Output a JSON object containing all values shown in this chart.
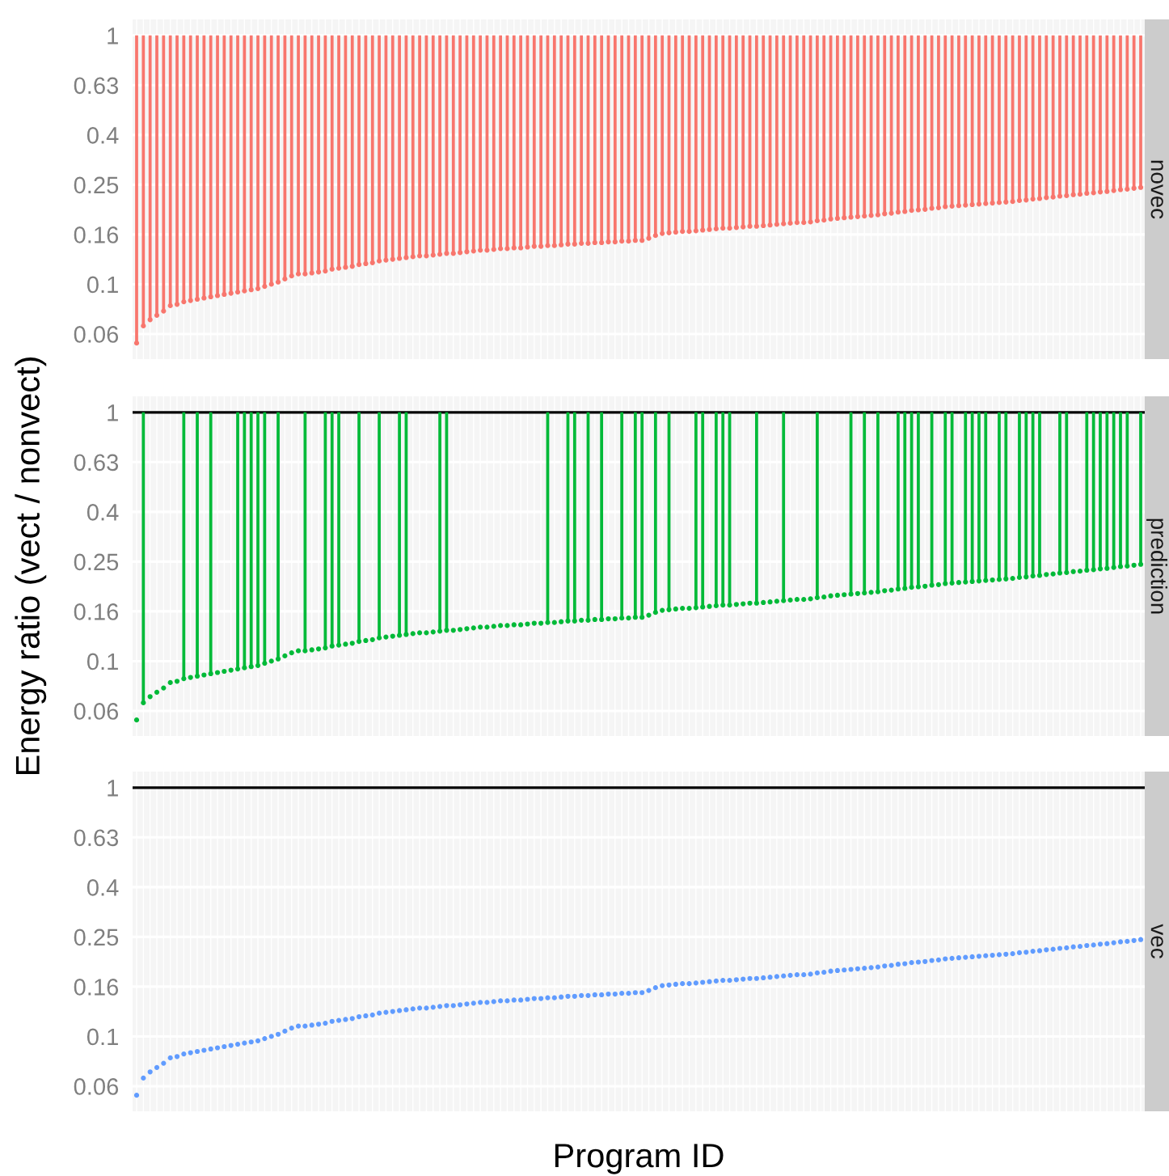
{
  "chart_data": [
    {
      "type": "bar",
      "title": "novec",
      "log": true,
      "grid": true,
      "tick_labels": "y",
      "ylim": [
        0.05,
        1.16
      ],
      "yticks": [
        {
          "value": 0.0631,
          "label": "0.06"
        },
        0.1,
        {
          "value": 0.1585,
          "label": "0.16"
        },
        {
          "value": 0.2512,
          "label": "0.25"
        },
        {
          "value": 0.3981,
          "label": "0.4"
        },
        {
          "value": 0.631,
          "label": "0.63"
        },
        1
      ],
      "categories": [
        null,
        null,
        null,
        null,
        null,
        null,
        null,
        null,
        null,
        null,
        null,
        null,
        null,
        null,
        null,
        null,
        null,
        null,
        null,
        null,
        null,
        null,
        null,
        null,
        null,
        null,
        null,
        null,
        null,
        null,
        null,
        null,
        null,
        null,
        null,
        null,
        null,
        null,
        null,
        null,
        null,
        null,
        null,
        null,
        null,
        null,
        null,
        null,
        null,
        null,
        null,
        null,
        null,
        null,
        null,
        null,
        null,
        null,
        null,
        null,
        null,
        null,
        null,
        null,
        null,
        null,
        null,
        null,
        null,
        null,
        null,
        null,
        null,
        null,
        null,
        null,
        null,
        null,
        null,
        null,
        null,
        null,
        null,
        null,
        null,
        null,
        null,
        null,
        null,
        null,
        null,
        null,
        null,
        null,
        null,
        null,
        null,
        null,
        null,
        null,
        null,
        null,
        null,
        null,
        null,
        null,
        null,
        null,
        null,
        null,
        null,
        null,
        null,
        null,
        null,
        null,
        null,
        null,
        null,
        null,
        null,
        null,
        null,
        null,
        null,
        null,
        null,
        null,
        null,
        null,
        null,
        null,
        null,
        null,
        null,
        null,
        null,
        null,
        null,
        null,
        null,
        null,
        null,
        null,
        null,
        null,
        null,
        null,
        null,
        null
      ],
      "series": [
        {
          "color": "#f8766d",
          "base": [
            0.058,
            0.068,
            0.072,
            0.075,
            0.078,
            0.082,
            0.083,
            0.085,
            0.086,
            0.087,
            0.088,
            0.089,
            0.09,
            0.091,
            0.092,
            0.093,
            0.094,
            0.095,
            0.096,
            0.098,
            0.1,
            0.102,
            0.105,
            0.108,
            0.11,
            0.11,
            0.111,
            0.112,
            0.113,
            0.115,
            0.116,
            0.117,
            0.118,
            0.12,
            0.121,
            0.122,
            0.124,
            0.125,
            0.126,
            0.127,
            0.128,
            0.129,
            0.13,
            0.13,
            0.131,
            0.132,
            0.133,
            0.133,
            0.134,
            0.135,
            0.136,
            0.137,
            0.137,
            0.138,
            0.139,
            0.139,
            0.14,
            0.14,
            0.141,
            0.142,
            0.142,
            0.143,
            0.143,
            0.144,
            0.145,
            0.145,
            0.146,
            0.146,
            0.147,
            0.147,
            0.148,
            0.148,
            0.149,
            0.149,
            0.15,
            0.15,
            0.153,
            0.157,
            0.16,
            0.161,
            0.162,
            0.163,
            0.163,
            0.164,
            0.165,
            0.166,
            0.167,
            0.168,
            0.168,
            0.169,
            0.17,
            0.171,
            0.171,
            0.172,
            0.173,
            0.174,
            0.175,
            0.176,
            0.177,
            0.177,
            0.178,
            0.18,
            0.181,
            0.183,
            0.184,
            0.185,
            0.186,
            0.187,
            0.188,
            0.189,
            0.19,
            0.192,
            0.193,
            0.195,
            0.196,
            0.198,
            0.199,
            0.2,
            0.202,
            0.203,
            0.205,
            0.206,
            0.207,
            0.208,
            0.209,
            0.21,
            0.211,
            0.212,
            0.213,
            0.214,
            0.215,
            0.217,
            0.218,
            0.22,
            0.221,
            0.223,
            0.224,
            0.226,
            0.227,
            0.229,
            0.23,
            0.232,
            0.233,
            0.235,
            0.236,
            0.238,
            0.24,
            0.241,
            0.243,
            0.245
          ],
          "values": [
            0.942,
            0.932,
            0.928,
            0.925,
            0.922,
            0.918,
            0.917,
            0.915,
            0.914,
            0.913,
            0.912,
            0.911,
            0.91,
            0.909,
            0.908,
            0.907,
            0.906,
            0.905,
            0.904,
            0.902,
            0.9,
            0.898,
            0.895,
            0.892,
            0.89,
            0.89,
            0.889,
            0.888,
            0.887,
            0.885,
            0.884,
            0.883,
            0.882,
            0.88,
            0.879,
            0.878,
            0.876,
            0.875,
            0.874,
            0.873,
            0.872,
            0.871,
            0.87,
            0.87,
            0.869,
            0.868,
            0.867,
            0.867,
            0.866,
            0.865,
            0.864,
            0.863,
            0.863,
            0.862,
            0.861,
            0.861,
            0.86,
            0.86,
            0.859,
            0.858,
            0.858,
            0.857,
            0.857,
            0.856,
            0.855,
            0.855,
            0.854,
            0.854,
            0.853,
            0.853,
            0.852,
            0.852,
            0.851,
            0.851,
            0.85,
            0.85,
            0.847,
            0.843,
            0.84,
            0.839,
            0.838,
            0.837,
            0.837,
            0.836,
            0.835,
            0.834,
            0.833,
            0.832,
            0.832,
            0.831,
            0.83,
            0.829,
            0.829,
            0.828,
            0.827,
            0.826,
            0.825,
            0.824,
            0.823,
            0.823,
            0.822,
            0.82,
            0.819,
            0.817,
            0.816,
            0.815,
            0.814,
            0.813,
            0.812,
            0.811,
            0.81,
            0.808,
            0.807,
            0.805,
            0.804,
            0.802,
            0.801,
            0.8,
            0.798,
            0.797,
            0.795,
            0.794,
            0.793,
            0.792,
            0.791,
            0.79,
            0.789,
            0.788,
            0.787,
            0.786,
            0.785,
            0.783,
            0.782,
            0.78,
            0.779,
            0.777,
            0.776,
            0.774,
            0.773,
            0.771,
            0.77,
            0.768,
            0.767,
            0.765,
            0.764,
            0.762,
            0.76,
            0.759,
            0.757,
            0.755
          ]
        },
        {
          "type": "scatter",
          "color": "#f8766d",
          "values": [
            0.058,
            0.068,
            0.072,
            0.075,
            0.078,
            0.082,
            0.083,
            0.085,
            0.086,
            0.087,
            0.088,
            0.089,
            0.09,
            0.091,
            0.092,
            0.093,
            0.094,
            0.095,
            0.096,
            0.098,
            0.1,
            0.102,
            0.105,
            0.108,
            0.11,
            0.11,
            0.111,
            0.112,
            0.113,
            0.115,
            0.116,
            0.117,
            0.118,
            0.12,
            0.121,
            0.122,
            0.124,
            0.125,
            0.126,
            0.127,
            0.128,
            0.129,
            0.13,
            0.13,
            0.131,
            0.132,
            0.133,
            0.133,
            0.134,
            0.135,
            0.136,
            0.137,
            0.137,
            0.138,
            0.139,
            0.139,
            0.14,
            0.14,
            0.141,
            0.142,
            0.142,
            0.143,
            0.143,
            0.144,
            0.145,
            0.145,
            0.146,
            0.146,
            0.147,
            0.147,
            0.148,
            0.148,
            0.149,
            0.149,
            0.15,
            0.15,
            0.153,
            0.157,
            0.16,
            0.161,
            0.162,
            0.163,
            0.163,
            0.164,
            0.165,
            0.166,
            0.167,
            0.168,
            0.168,
            0.169,
            0.17,
            0.171,
            0.171,
            0.172,
            0.173,
            0.174,
            0.175,
            0.176,
            0.177,
            0.177,
            0.178,
            0.18,
            0.181,
            0.183,
            0.184,
            0.185,
            0.186,
            0.187,
            0.188,
            0.189,
            0.19,
            0.192,
            0.193,
            0.195,
            0.196,
            0.198,
            0.199,
            0.2,
            0.202,
            0.203,
            0.205,
            0.206,
            0.207,
            0.208,
            0.209,
            0.21,
            0.211,
            0.212,
            0.213,
            0.214,
            0.215,
            0.217,
            0.218,
            0.22,
            0.221,
            0.223,
            0.224,
            0.226,
            0.227,
            0.229,
            0.23,
            0.232,
            0.233,
            0.235,
            0.236,
            0.238,
            0.24,
            0.241,
            0.243,
            0.245
          ]
        }
      ]
    },
    {
      "type": "bar",
      "title": "prediction",
      "ylabel": "Energy ratio (vect / nonvect)",
      "log": true,
      "grid": true,
      "tick_labels": "y",
      "ylim": [
        0.05,
        1.16
      ],
      "yticks": [
        {
          "value": 0.0631,
          "label": "0.06"
        },
        0.1,
        {
          "value": 0.1585,
          "label": "0.16"
        },
        {
          "value": 0.2512,
          "label": "0.25"
        },
        {
          "value": 0.3981,
          "label": "0.4"
        },
        {
          "value": 0.631,
          "label": "0.63"
        },
        1
      ],
      "ref_lines": [
        {
          "axis": "y",
          "value": 1,
          "color": "#000000"
        }
      ],
      "categories": [
        null,
        null,
        null,
        null,
        null,
        null,
        null,
        null,
        null,
        null,
        null,
        null,
        null,
        null,
        null,
        null,
        null,
        null,
        null,
        null,
        null,
        null,
        null,
        null,
        null,
        null,
        null,
        null,
        null,
        null,
        null,
        null,
        null,
        null,
        null,
        null,
        null,
        null,
        null,
        null,
        null,
        null,
        null,
        null,
        null,
        null,
        null,
        null,
        null,
        null,
        null,
        null,
        null,
        null,
        null,
        null,
        null,
        null,
        null,
        null,
        null,
        null,
        null,
        null,
        null,
        null,
        null,
        null,
        null,
        null,
        null,
        null,
        null,
        null,
        null,
        null,
        null,
        null,
        null,
        null,
        null,
        null,
        null,
        null,
        null,
        null,
        null,
        null,
        null,
        null,
        null,
        null,
        null,
        null,
        null,
        null,
        null,
        null,
        null,
        null,
        null,
        null,
        null,
        null,
        null,
        null,
        null,
        null,
        null,
        null,
        null,
        null,
        null,
        null,
        null,
        null,
        null,
        null,
        null,
        null,
        null,
        null,
        null,
        null,
        null,
        null,
        null,
        null,
        null,
        null,
        null,
        null,
        null,
        null,
        null,
        null,
        null,
        null,
        null,
        null,
        null,
        null,
        null,
        null,
        null,
        null,
        null,
        null,
        null,
        null
      ],
      "series": [
        {
          "color": "#00ba38",
          "base": [
            null,
            0.068,
            null,
            null,
            null,
            null,
            null,
            0.085,
            null,
            0.087,
            null,
            0.089,
            null,
            null,
            null,
            0.093,
            0.094,
            0.095,
            0.096,
            0.098,
            null,
            0.102,
            null,
            null,
            null,
            0.11,
            null,
            null,
            0.113,
            0.115,
            0.116,
            null,
            null,
            0.12,
            null,
            null,
            0.124,
            null,
            null,
            0.127,
            0.128,
            null,
            null,
            null,
            null,
            0.132,
            0.133,
            null,
            null,
            null,
            null,
            null,
            null,
            null,
            null,
            null,
            null,
            null,
            null,
            null,
            null,
            0.143,
            null,
            null,
            0.145,
            0.145,
            null,
            0.146,
            null,
            0.147,
            null,
            null,
            0.149,
            null,
            0.15,
            0.15,
            null,
            0.157,
            null,
            0.161,
            null,
            null,
            null,
            0.164,
            0.165,
            null,
            0.167,
            0.168,
            0.168,
            null,
            null,
            null,
            0.171,
            null,
            null,
            null,
            0.175,
            null,
            null,
            null,
            null,
            0.18,
            null,
            null,
            null,
            null,
            0.186,
            null,
            0.188,
            null,
            0.19,
            null,
            null,
            0.195,
            0.196,
            0.198,
            0.199,
            null,
            0.202,
            null,
            0.205,
            0.206,
            null,
            0.208,
            0.209,
            0.21,
            0.211,
            null,
            0.213,
            0.214,
            null,
            0.217,
            0.218,
            0.22,
            0.221,
            null,
            null,
            0.226,
            0.227,
            null,
            null,
            0.232,
            0.233,
            0.235,
            0.236,
            0.238,
            0.24,
            0.241,
            null,
            0.245
          ],
          "values": [
            null,
            0.932,
            null,
            null,
            null,
            null,
            null,
            0.915,
            null,
            0.913,
            null,
            0.911,
            null,
            null,
            null,
            0.907,
            0.906,
            0.905,
            0.904,
            0.902,
            null,
            0.898,
            null,
            null,
            null,
            0.89,
            null,
            null,
            0.887,
            0.885,
            0.884,
            null,
            null,
            0.88,
            null,
            null,
            0.876,
            null,
            null,
            0.873,
            0.872,
            null,
            null,
            null,
            null,
            0.868,
            0.867,
            null,
            null,
            null,
            null,
            null,
            null,
            null,
            null,
            null,
            null,
            null,
            null,
            null,
            null,
            0.857,
            null,
            null,
            0.855,
            0.855,
            null,
            0.854,
            null,
            0.853,
            null,
            null,
            0.851,
            null,
            0.85,
            0.85,
            null,
            0.843,
            null,
            0.839,
            null,
            null,
            null,
            0.836,
            0.835,
            null,
            0.833,
            0.832,
            0.832,
            null,
            null,
            null,
            0.829,
            null,
            null,
            null,
            0.825,
            null,
            null,
            null,
            null,
            0.82,
            null,
            null,
            null,
            null,
            0.814,
            null,
            0.812,
            null,
            0.81,
            null,
            null,
            0.805,
            0.804,
            0.802,
            0.801,
            null,
            0.798,
            null,
            0.795,
            0.794,
            null,
            0.792,
            0.791,
            0.79,
            0.789,
            null,
            0.787,
            0.786,
            null,
            0.783,
            0.782,
            0.78,
            0.779,
            null,
            null,
            0.774,
            0.773,
            null,
            null,
            0.768,
            0.767,
            0.765,
            0.764,
            0.762,
            0.76,
            0.759,
            null,
            0.755
          ]
        },
        {
          "type": "scatter",
          "color": "#00ba38",
          "values": [
            0.058,
            0.068,
            0.072,
            0.075,
            0.078,
            0.082,
            0.083,
            0.085,
            0.086,
            0.087,
            0.088,
            0.089,
            0.09,
            0.091,
            0.092,
            0.093,
            0.094,
            0.095,
            0.096,
            0.098,
            0.1,
            0.102,
            0.105,
            0.108,
            0.11,
            0.11,
            0.111,
            0.112,
            0.113,
            0.115,
            0.116,
            0.117,
            0.118,
            0.12,
            0.121,
            0.122,
            0.124,
            0.125,
            0.126,
            0.127,
            0.128,
            0.129,
            0.13,
            0.13,
            0.131,
            0.132,
            0.133,
            0.133,
            0.134,
            0.135,
            0.136,
            0.137,
            0.137,
            0.138,
            0.139,
            0.139,
            0.14,
            0.14,
            0.141,
            0.142,
            0.142,
            0.143,
            0.143,
            0.144,
            0.145,
            0.145,
            0.146,
            0.146,
            0.147,
            0.147,
            0.148,
            0.148,
            0.149,
            0.149,
            0.15,
            0.15,
            0.153,
            0.157,
            0.16,
            0.161,
            0.162,
            0.163,
            0.163,
            0.164,
            0.165,
            0.166,
            0.167,
            0.168,
            0.168,
            0.169,
            0.17,
            0.171,
            0.171,
            0.172,
            0.173,
            0.174,
            0.175,
            0.176,
            0.177,
            0.177,
            0.178,
            0.18,
            0.181,
            0.183,
            0.184,
            0.185,
            0.186,
            0.187,
            0.188,
            0.189,
            0.19,
            0.192,
            0.193,
            0.195,
            0.196,
            0.198,
            0.199,
            0.2,
            0.202,
            0.203,
            0.205,
            0.206,
            0.207,
            0.208,
            0.209,
            0.21,
            0.211,
            0.212,
            0.213,
            0.214,
            0.215,
            0.217,
            0.218,
            0.22,
            0.221,
            0.223,
            0.224,
            0.226,
            0.227,
            0.229,
            0.23,
            0.232,
            0.233,
            0.235,
            0.236,
            0.238,
            0.24,
            0.241,
            0.243,
            0.245
          ]
        }
      ]
    },
    {
      "type": "scatter",
      "title": "vec",
      "xlabel": "Program ID",
      "log": true,
      "grid": true,
      "tick_labels": "y",
      "ylim": [
        0.05,
        1.16
      ],
      "yticks": [
        {
          "value": 0.0631,
          "label": "0.06"
        },
        0.1,
        {
          "value": 0.1585,
          "label": "0.16"
        },
        {
          "value": 0.2512,
          "label": "0.25"
        },
        {
          "value": 0.3981,
          "label": "0.4"
        },
        {
          "value": 0.631,
          "label": "0.63"
        },
        1
      ],
      "ref_lines": [
        {
          "axis": "y",
          "value": 1,
          "color": "#000000"
        }
      ],
      "categories": [
        null,
        null,
        null,
        null,
        null,
        null,
        null,
        null,
        null,
        null,
        null,
        null,
        null,
        null,
        null,
        null,
        null,
        null,
        null,
        null,
        null,
        null,
        null,
        null,
        null,
        null,
        null,
        null,
        null,
        null,
        null,
        null,
        null,
        null,
        null,
        null,
        null,
        null,
        null,
        null,
        null,
        null,
        null,
        null,
        null,
        null,
        null,
        null,
        null,
        null,
        null,
        null,
        null,
        null,
        null,
        null,
        null,
        null,
        null,
        null,
        null,
        null,
        null,
        null,
        null,
        null,
        null,
        null,
        null,
        null,
        null,
        null,
        null,
        null,
        null,
        null,
        null,
        null,
        null,
        null,
        null,
        null,
        null,
        null,
        null,
        null,
        null,
        null,
        null,
        null,
        null,
        null,
        null,
        null,
        null,
        null,
        null,
        null,
        null,
        null,
        null,
        null,
        null,
        null,
        null,
        null,
        null,
        null,
        null,
        null,
        null,
        null,
        null,
        null,
        null,
        null,
        null,
        null,
        null,
        null,
        null,
        null,
        null,
        null,
        null,
        null,
        null,
        null,
        null,
        null,
        null,
        null,
        null,
        null,
        null,
        null,
        null,
        null,
        null,
        null,
        null,
        null,
        null,
        null,
        null,
        null,
        null,
        null,
        null,
        null
      ],
      "series": [
        {
          "color": "#619cff",
          "values": [
            0.058,
            0.068,
            0.072,
            0.075,
            0.078,
            0.082,
            0.083,
            0.085,
            0.086,
            0.087,
            0.088,
            0.089,
            0.09,
            0.091,
            0.092,
            0.093,
            0.094,
            0.095,
            0.096,
            0.098,
            0.1,
            0.102,
            0.105,
            0.108,
            0.11,
            0.11,
            0.111,
            0.112,
            0.113,
            0.115,
            0.116,
            0.117,
            0.118,
            0.12,
            0.121,
            0.122,
            0.124,
            0.125,
            0.126,
            0.127,
            0.128,
            0.129,
            0.13,
            0.13,
            0.131,
            0.132,
            0.133,
            0.133,
            0.134,
            0.135,
            0.136,
            0.137,
            0.137,
            0.138,
            0.139,
            0.139,
            0.14,
            0.14,
            0.141,
            0.142,
            0.142,
            0.143,
            0.143,
            0.144,
            0.145,
            0.145,
            0.146,
            0.146,
            0.147,
            0.147,
            0.148,
            0.148,
            0.149,
            0.149,
            0.15,
            0.15,
            0.153,
            0.157,
            0.16,
            0.161,
            0.162,
            0.163,
            0.163,
            0.164,
            0.165,
            0.166,
            0.167,
            0.168,
            0.168,
            0.169,
            0.17,
            0.171,
            0.171,
            0.172,
            0.173,
            0.174,
            0.175,
            0.176,
            0.177,
            0.177,
            0.178,
            0.18,
            0.181,
            0.183,
            0.184,
            0.185,
            0.186,
            0.187,
            0.188,
            0.189,
            0.19,
            0.192,
            0.193,
            0.195,
            0.196,
            0.198,
            0.199,
            0.2,
            0.202,
            0.203,
            0.205,
            0.206,
            0.207,
            0.208,
            0.209,
            0.21,
            0.211,
            0.212,
            0.213,
            0.214,
            0.215,
            0.217,
            0.218,
            0.22,
            0.221,
            0.223,
            0.224,
            0.226,
            0.227,
            0.229,
            0.23,
            0.232,
            0.233,
            0.235,
            0.236,
            0.238,
            0.24,
            0.241,
            0.243,
            0.245
          ]
        }
      ]
    }
  ]
}
